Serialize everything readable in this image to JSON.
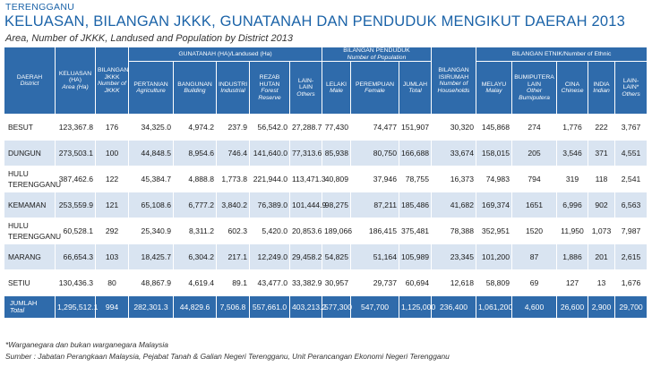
{
  "state": "TERENGGANU",
  "title": "KELUASAN, BILANGAN JKKK, GUNATANAH DAN PENDUDUK MENGIKUT DAERAH 2013",
  "subtitle": "Area, Number of JKKK, Landused and Population by District 2013",
  "headers": {
    "district": {
      "ms": "DAERAH",
      "en": "District"
    },
    "area": {
      "ms": "KELUASAN (HA)",
      "en": "Area (Ha)"
    },
    "jkkk": {
      "ms": "BILANGAN JKKK",
      "en": "Number of JKKK"
    },
    "landuse_group": "GUNATANAH (HA)/Landused (Ha)",
    "agri": {
      "ms": "PERTANIAN",
      "en": "Agriculture"
    },
    "building": {
      "ms": "BANGUNAN",
      "en": "Building"
    },
    "industri": {
      "ms": "INDUSTRI",
      "en": "Industrial"
    },
    "forest": {
      "ms": "REZAB HUTAN",
      "en": "Forest Reserve"
    },
    "others_land": {
      "ms": "LAIN-LAIN",
      "en": "Others"
    },
    "population_group": {
      "ms": "BILANGAN PENDUDUK",
      "en": "Number of Population"
    },
    "male": {
      "ms": "LELAKI",
      "en": "Male"
    },
    "female": {
      "ms": "PEREMPUAN",
      "en": "Female"
    },
    "total": {
      "ms": "JUMLAH",
      "en": "Total"
    },
    "households": {
      "ms": "BILANGAN ISIRUMAH",
      "en": "Number of Households"
    },
    "ethnic_group": "BILANGAN ETNIK/Number of Ethnic",
    "malay": {
      "ms": "MELAYU",
      "en": "Malay"
    },
    "bumi": {
      "ms": "BUMIPUTERA LAIN",
      "en": "Other Bumiputera"
    },
    "chinese": {
      "ms": "CINA",
      "en": "Chinese"
    },
    "indian": {
      "ms": "INDIA",
      "en": "Indian"
    },
    "others_eth": {
      "ms": "LAIN-LAIN*",
      "en": "Others"
    }
  },
  "rows": [
    {
      "name": "BESUT",
      "area": "123,367.8",
      "jkkk": "176",
      "agri": "34,325.0",
      "building": "4,974.2",
      "industri": "237.9",
      "forest": "56,542.0",
      "others_land": "27,288.7",
      "male": "77,430",
      "female": "74,477",
      "total": "151,907",
      "households": "30,320",
      "malay": "145,868",
      "bumi": "274",
      "chinese": "1,776",
      "indian": "222",
      "others_eth": "3,767"
    },
    {
      "name": "DUNGUN",
      "area": "273,503.1",
      "jkkk": "100",
      "agri": "44,848.5",
      "building": "8,954.6",
      "industri": "746.4",
      "forest": "141,640.0",
      "others_land": "77,313.6",
      "male": "85,938",
      "female": "80,750",
      "total": "166,688",
      "households": "33,674",
      "malay": "158,015",
      "bumi": "205",
      "chinese": "3,546",
      "indian": "371",
      "others_eth": "4,551"
    },
    {
      "name": "HULU TERENGGANU",
      "area": "387,462.6",
      "jkkk": "122",
      "agri": "45,384.7",
      "building": "4,888.8",
      "industri": "1,773.8",
      "forest": "221,944.0",
      "others_land": "113,471.3",
      "male": "40,809",
      "female": "37,946",
      "total": "78,755",
      "households": "16,373",
      "malay": "74,983",
      "bumi": "794",
      "chinese": "319",
      "indian": "118",
      "others_eth": "2,541"
    },
    {
      "name": "KEMAMAN",
      "area": "253,559.9",
      "jkkk": "121",
      "agri": "65,108.6",
      "building": "6,777.2",
      "industri": "3,840.2",
      "forest": "76,389.0",
      "others_land": "101,444.9",
      "male": "98,275",
      "female": "87,211",
      "total": "185,486",
      "households": "41,682",
      "malay": "169,374",
      "bumi": "1651",
      "chinese": "6,996",
      "indian": "902",
      "others_eth": "6,563"
    },
    {
      "name": "HULU TERENGGANU",
      "area": "60,528.1",
      "jkkk": "292",
      "agri": "25,340.9",
      "building": "8,311.2",
      "industri": "602.3",
      "forest": "5,420.0",
      "others_land": "20,853.6",
      "male": "189,066",
      "female": "186,415",
      "total": "375,481",
      "households": "78,388",
      "malay": "352,951",
      "bumi": "1520",
      "chinese": "11,950",
      "indian": "1,073",
      "others_eth": "7,987"
    },
    {
      "name": "MARANG",
      "area": "66,654.3",
      "jkkk": "103",
      "agri": "18,425.7",
      "building": "6,304.2",
      "industri": "217.1",
      "forest": "12,249.0",
      "others_land": "29,458.2",
      "male": "54,825",
      "female": "51,164",
      "total": "105,989",
      "households": "23,345",
      "malay": "101,200",
      "bumi": "87",
      "chinese": "1,886",
      "indian": "201",
      "others_eth": "2,615"
    },
    {
      "name": "SETIU",
      "area": "130,436.3",
      "jkkk": "80",
      "agri": "48,867.9",
      "building": "4,619.4",
      "industri": "89.1",
      "forest": "43,477.0",
      "others_land": "33,382.9",
      "male": "30,957",
      "female": "29,737",
      "total": "60,694",
      "households": "12,618",
      "malay": "58,809",
      "bumi": "69",
      "chinese": "127",
      "indian": "13",
      "others_eth": "1,676"
    }
  ],
  "totals": {
    "label_ms": "JUMLAH",
    "label_en": "Total",
    "area": "1,295,512.1",
    "jkkk": "994",
    "agri": "282,301.3",
    "building": "44,829.6",
    "industri": "7,506.8",
    "forest": "557,661.0",
    "others_land": "403,213.2",
    "male": "577,300",
    "female": "547,700",
    "total": "1,125,000",
    "households": "236,400",
    "malay": "1,061,200",
    "bumi": "4,600",
    "chinese": "26,600",
    "indian": "2,900",
    "others_eth": "29,700"
  },
  "footnote": "*Warganegara dan bukan warganegara Malaysia",
  "source": "Sumber : Jabatan Perangkaan Malaysia, Pejabat Tanah & Galian Negeri Terengganu, Unit Perancangan Ekonomi Negeri Terengganu",
  "colors": {
    "header_blue": "#2f6bab",
    "title_blue": "#1b63a8",
    "stripe": "#d9e4f1"
  }
}
